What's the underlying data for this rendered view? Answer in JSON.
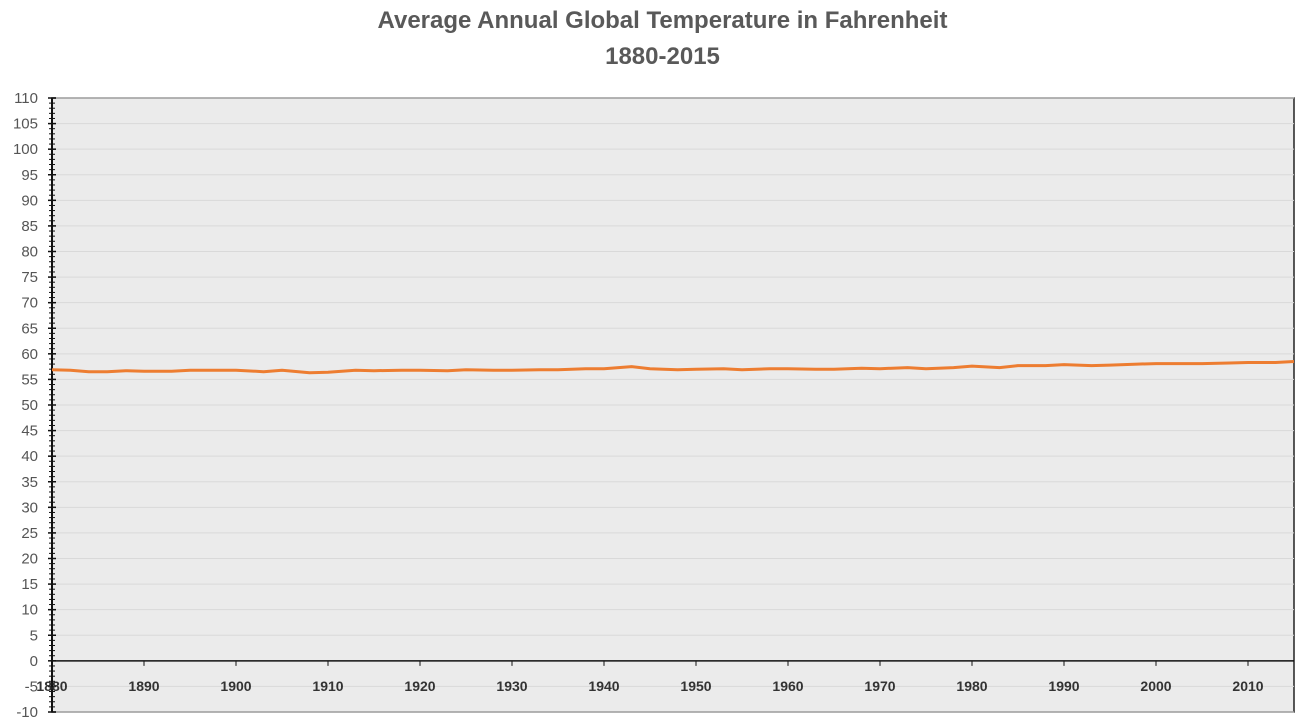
{
  "chart_data": {
    "type": "line",
    "title": "Average Annual Global Temperature in Fahrenheit",
    "subtitle": "1880-2015",
    "xlabel": "",
    "ylabel": "",
    "xlim": [
      1880,
      2015
    ],
    "ylim": [
      -10,
      110
    ],
    "x_ticks": [
      1880,
      1890,
      1900,
      1910,
      1920,
      1930,
      1940,
      1950,
      1960,
      1970,
      1980,
      1990,
      2000,
      2010
    ],
    "x_tick_labels": [
      "1880",
      "1890",
      "1900",
      "1910",
      "1920",
      "1930",
      "1940",
      "1950",
      "1960",
      "1970",
      "1980",
      "1990",
      "2000",
      "2010"
    ],
    "y_ticks": [
      -10,
      -5,
      0,
      5,
      10,
      15,
      20,
      25,
      30,
      35,
      40,
      45,
      50,
      55,
      60,
      65,
      70,
      75,
      80,
      85,
      90,
      95,
      100,
      105,
      110
    ],
    "y_tick_labels": [
      "-10",
      "-5",
      "0",
      "5",
      "10",
      "15",
      "20",
      "25",
      "30",
      "35",
      "40",
      "45",
      "50",
      "55",
      "60",
      "65",
      "70",
      "75",
      "80",
      "85",
      "90",
      "95",
      "100",
      "105",
      "110"
    ],
    "grid": true,
    "legend": "none",
    "series": [
      {
        "color": "#ED7D31",
        "x": [
          1880,
          1882,
          1884,
          1886,
          1888,
          1890,
          1893,
          1895,
          1898,
          1900,
          1903,
          1905,
          1908,
          1910,
          1913,
          1915,
          1918,
          1920,
          1923,
          1925,
          1928,
          1930,
          1933,
          1935,
          1938,
          1940,
          1943,
          1945,
          1948,
          1950,
          1953,
          1955,
          1958,
          1960,
          1963,
          1965,
          1968,
          1970,
          1973,
          1975,
          1978,
          1980,
          1983,
          1985,
          1988,
          1990,
          1993,
          1995,
          1998,
          2000,
          2003,
          2005,
          2008,
          2010,
          2013,
          2015
        ],
        "y": [
          56.9,
          56.8,
          56.5,
          56.5,
          56.7,
          56.6,
          56.6,
          56.8,
          56.8,
          56.8,
          56.5,
          56.8,
          56.3,
          56.4,
          56.8,
          56.7,
          56.8,
          56.8,
          56.7,
          56.9,
          56.8,
          56.8,
          56.9,
          56.9,
          57.1,
          57.1,
          57.5,
          57.1,
          56.9,
          57.0,
          57.1,
          56.9,
          57.1,
          57.1,
          57.0,
          57.0,
          57.2,
          57.1,
          57.3,
          57.1,
          57.3,
          57.6,
          57.3,
          57.7,
          57.7,
          57.9,
          57.7,
          57.8,
          58.0,
          58.1,
          58.1,
          58.1,
          58.2,
          58.3,
          58.3,
          58.5
        ]
      }
    ]
  },
  "colors": {
    "line": "#ED7D31",
    "plot_background": "#EBEBEB",
    "gridline": "#D9D9D9",
    "title": "#595959"
  }
}
